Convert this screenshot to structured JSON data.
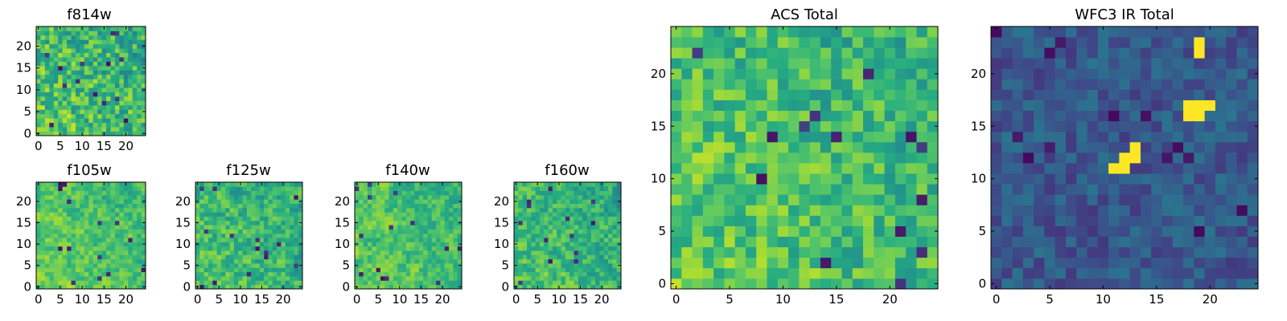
{
  "figure": {
    "title": ""
  },
  "chart_data": [
    {
      "type": "heatmap",
      "title": "f814w",
      "grid_size": 25,
      "colormap": "viridis",
      "seed": 11,
      "bias": 0.62,
      "noise": 0.22,
      "smooth": 0.1,
      "hotspots": [],
      "xticks": [
        0,
        5,
        10,
        15,
        20
      ],
      "yticks": [
        0,
        5,
        10,
        15,
        20
      ],
      "xlim": [
        -0.5,
        24.5
      ],
      "ylim": [
        -0.5,
        24.5
      ]
    },
    {
      "type": "heatmap",
      "title": "f105w",
      "grid_size": 25,
      "colormap": "viridis",
      "seed": 23,
      "bias": 0.66,
      "noise": 0.18,
      "smooth": 0.45,
      "hotspots": [],
      "xticks": [
        0,
        5,
        10,
        15,
        20
      ],
      "yticks": [
        0,
        5,
        10,
        15,
        20
      ],
      "xlim": [
        -0.5,
        24.5
      ],
      "ylim": [
        -0.5,
        24.5
      ]
    },
    {
      "type": "heatmap",
      "title": "f125w",
      "grid_size": 25,
      "colormap": "viridis",
      "seed": 37,
      "bias": 0.6,
      "noise": 0.22,
      "smooth": 0.4,
      "hotspots": [],
      "xticks": [
        0,
        5,
        10,
        15,
        20
      ],
      "yticks": [
        0,
        5,
        10,
        15,
        20
      ],
      "xlim": [
        -0.5,
        24.5
      ],
      "ylim": [
        -0.5,
        24.5
      ]
    },
    {
      "type": "heatmap",
      "title": "f140w",
      "grid_size": 25,
      "colormap": "viridis",
      "seed": 41,
      "bias": 0.64,
      "noise": 0.2,
      "smooth": 0.5,
      "hotspots": [],
      "xticks": [
        0,
        5,
        10,
        15,
        20
      ],
      "yticks": [
        0,
        5,
        10,
        15,
        20
      ],
      "xlim": [
        -0.5,
        24.5
      ],
      "ylim": [
        -0.5,
        24.5
      ]
    },
    {
      "type": "heatmap",
      "title": "f160w",
      "grid_size": 25,
      "colormap": "viridis",
      "seed": 53,
      "bias": 0.6,
      "noise": 0.22,
      "smooth": 0.45,
      "hotspots": [],
      "xticks": [
        0,
        5,
        10,
        15,
        20
      ],
      "yticks": [
        0,
        5,
        10,
        15,
        20
      ],
      "xlim": [
        -0.5,
        24.5
      ],
      "ylim": [
        -0.5,
        24.5
      ]
    },
    {
      "type": "heatmap",
      "title": "ACS Total",
      "grid_size": 25,
      "colormap": "viridis",
      "seed": 67,
      "bias": 0.63,
      "noise": 0.2,
      "smooth": 0.2,
      "hotspots": [],
      "xticks": [
        0,
        5,
        10,
        15,
        20
      ],
      "yticks": [
        0,
        5,
        10,
        15,
        20
      ],
      "xlim": [
        -0.5,
        24.5
      ],
      "ylim": [
        -0.5,
        24.5
      ]
    },
    {
      "type": "heatmap",
      "title": "WFC3 IR Total",
      "grid_size": 25,
      "colormap": "viridis",
      "seed": 79,
      "bias": 0.28,
      "noise": 0.14,
      "smooth": 0.25,
      "hotspots": [
        [
          11,
          11
        ],
        [
          12,
          11
        ],
        [
          12,
          12
        ],
        [
          13,
          12
        ],
        [
          13,
          13
        ],
        [
          18,
          16
        ],
        [
          19,
          16
        ],
        [
          18,
          17
        ],
        [
          19,
          17
        ],
        [
          20,
          17
        ],
        [
          19,
          22
        ],
        [
          19,
          23
        ]
      ],
      "xticks": [
        0,
        5,
        10,
        15,
        20
      ],
      "yticks": [
        0,
        5,
        10,
        15,
        20
      ],
      "xlim": [
        -0.5,
        24.5
      ],
      "ylim": [
        -0.5,
        24.5
      ]
    }
  ]
}
